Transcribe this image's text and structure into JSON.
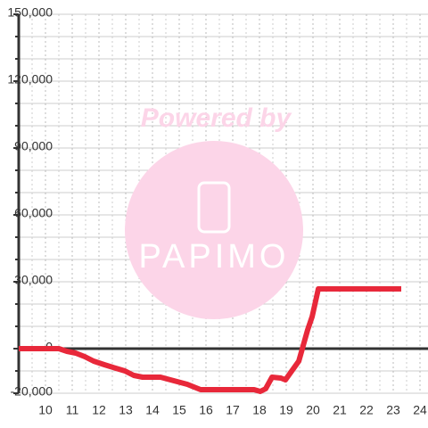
{
  "chart_data": {
    "type": "line",
    "x": [
      9,
      10.5,
      10.8,
      11.13,
      11.47,
      11.8,
      12.2,
      12.63,
      12.97,
      13.3,
      13.63,
      14.3,
      14.8,
      15.3,
      15.8,
      17.8,
      18.03,
      18.23,
      18.47,
      18.8,
      18.97,
      19.47,
      19.8,
      19.97,
      20.2,
      23.3
    ],
    "series": [
      {
        "color": "#e8283a",
        "values": [
          0,
          0,
          -1200,
          -2000,
          -3600,
          -5600,
          -7200,
          -8800,
          -10000,
          -12000,
          -12800,
          -12800,
          -14400,
          -16000,
          -18400,
          -18400,
          -19200,
          -18000,
          -12800,
          -13200,
          -14000,
          -5600,
          8400,
          14400,
          26800,
          26800
        ]
      }
    ],
    "xlim": [
      9,
      24.3
    ],
    "xticks": [
      10,
      11,
      12,
      13,
      14,
      15,
      16,
      17,
      18,
      19,
      20,
      21,
      22,
      23,
      24
    ],
    "xminor": [
      9.5,
      10.5,
      11.5,
      12.5,
      13.5,
      14.5,
      15.5,
      16.5,
      17.5,
      18.5,
      19.5,
      20.5,
      21.5,
      22.5,
      23.5
    ],
    "ylim": [
      -20000,
      150000
    ],
    "yticks": [
      {
        "value": -20000,
        "label": "-20,000"
      },
      0,
      {
        "value": 30000,
        "label": "30,000"
      },
      {
        "value": 60000,
        "label": "60,000"
      },
      {
        "value": 90000,
        "label": "90,000"
      },
      {
        "value": 120000,
        "label": "120,000"
      },
      {
        "value": 150000,
        "label": "150,000"
      }
    ],
    "yminor": [
      -10000,
      10000,
      20000,
      40000,
      50000,
      70000,
      80000,
      100000,
      110000,
      130000,
      140000
    ],
    "grid": true,
    "watermark": {
      "line1": "Powered by",
      "line2": "PAPIMO"
    }
  }
}
